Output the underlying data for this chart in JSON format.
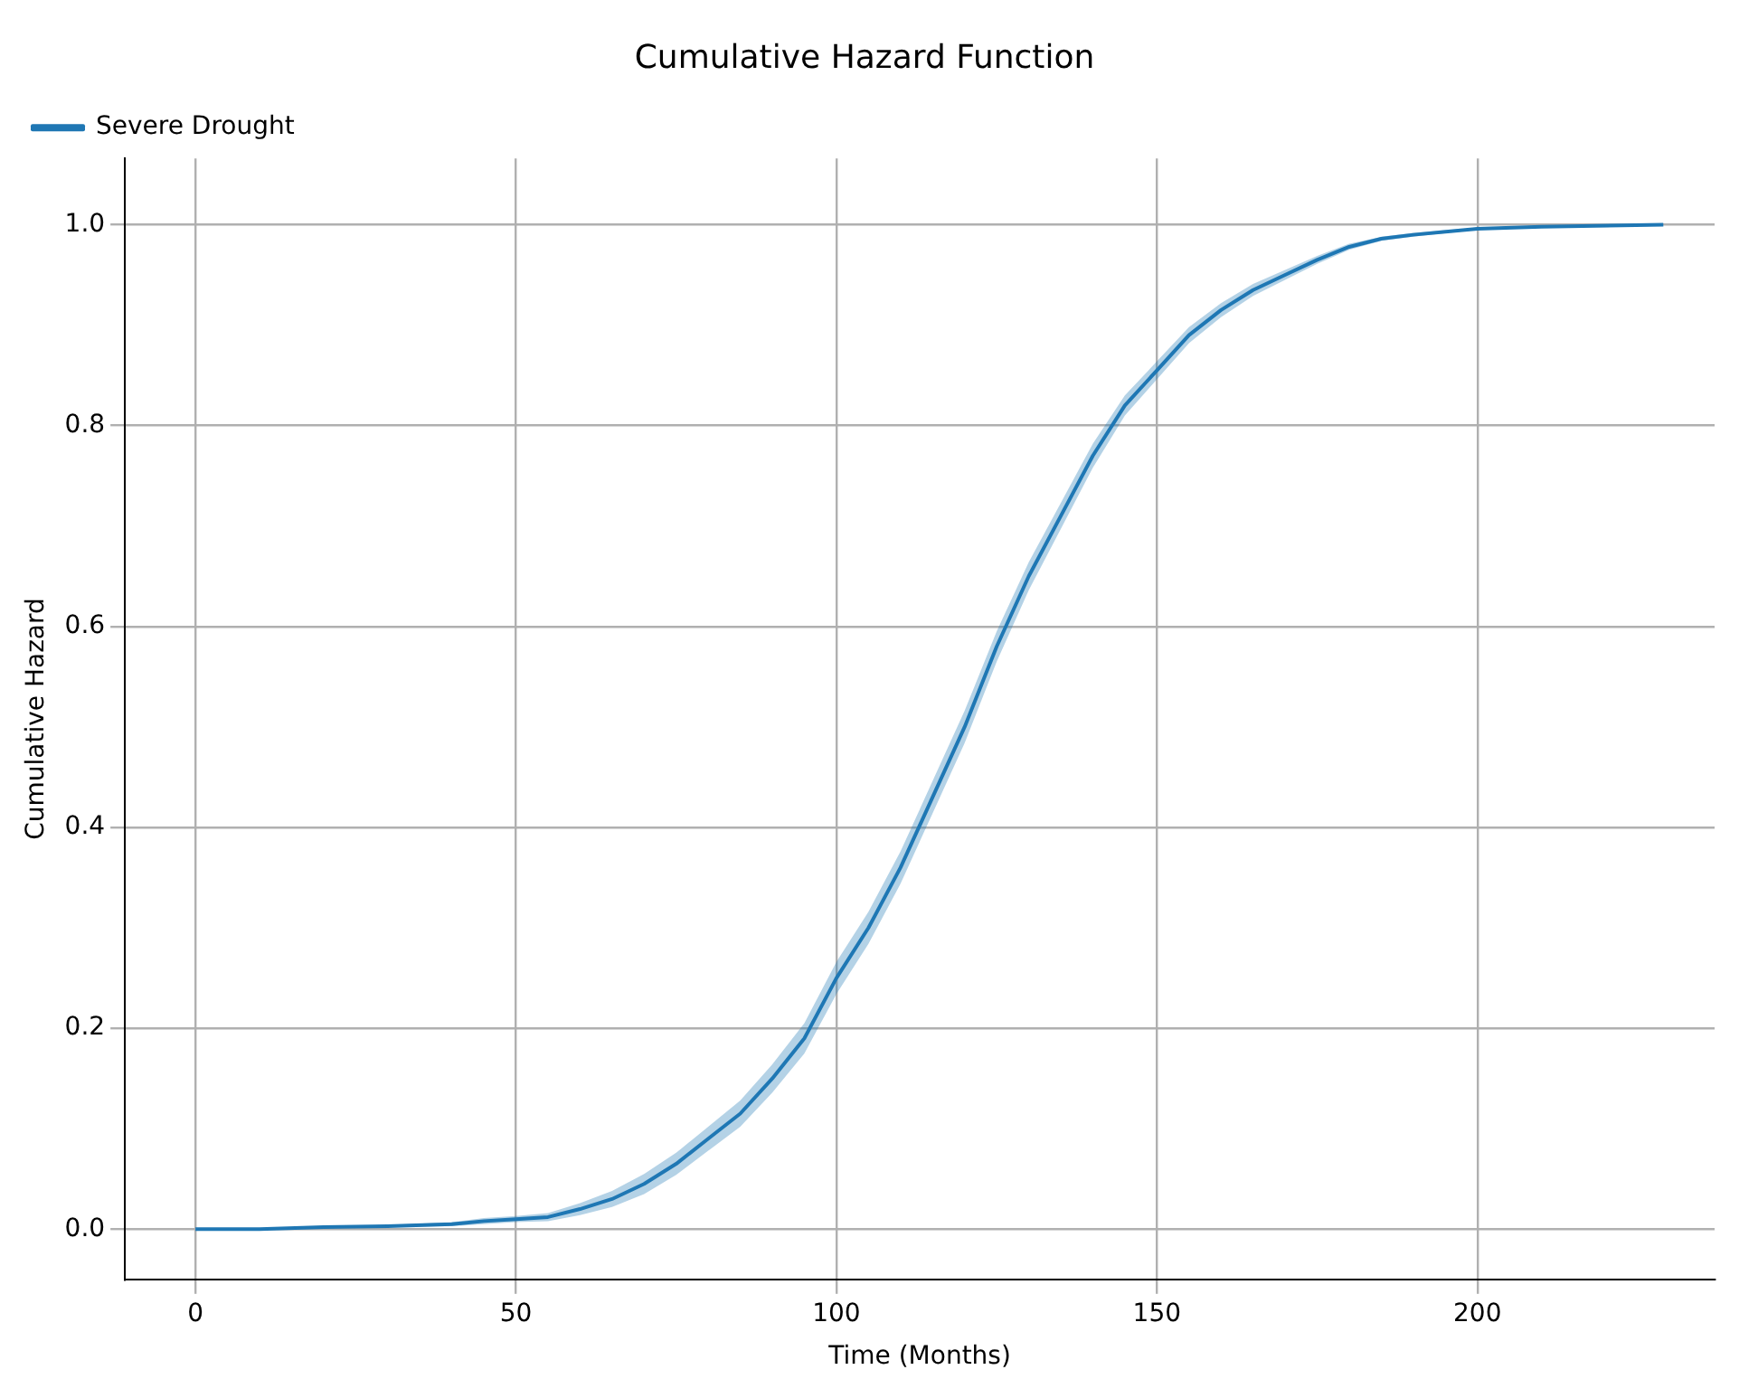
{
  "chart_data": {
    "type": "line",
    "title": "Cumulative Hazard Function",
    "xlabel": "Time (Months)",
    "ylabel": "Cumulative Hazard",
    "xlim": [
      -11,
      237
    ],
    "ylim": [
      -0.05,
      1.066
    ],
    "xticks": [
      0,
      50,
      100,
      150,
      200
    ],
    "yticks": [
      {
        "value": 0,
        "label": "0.0"
      },
      {
        "value": 0.2,
        "label": "0.2"
      },
      {
        "value": 0.4,
        "label": "0.4"
      },
      {
        "value": 0.6,
        "label": "0.6"
      },
      {
        "value": 0.8,
        "label": "0.8"
      },
      {
        "value": 1,
        "label": "1.0"
      }
    ],
    "grid": true,
    "legend": "top left",
    "line_style": "solid",
    "marker": "none",
    "series": [
      {
        "name": "Severe Drought",
        "color": "#1f77b4",
        "x": [
          0,
          10,
          20,
          30,
          40,
          45,
          50,
          55,
          60,
          65,
          70,
          75,
          80,
          85,
          90,
          95,
          100,
          105,
          110,
          115,
          120,
          125,
          130,
          135,
          140,
          145,
          150,
          155,
          160,
          165,
          170,
          175,
          180,
          185,
          190,
          200,
          210,
          229
        ],
        "values": [
          0,
          0,
          0.002,
          0.003,
          0.005,
          0.008,
          0.01,
          0.012,
          0.02,
          0.03,
          0.045,
          0.065,
          0.09,
          0.115,
          0.15,
          0.19,
          0.25,
          0.3,
          0.36,
          0.43,
          0.5,
          0.58,
          0.65,
          0.71,
          0.77,
          0.82,
          0.855,
          0.89,
          0.915,
          0.935,
          0.95,
          0.965,
          0.978,
          0.986,
          0.99,
          0.996,
          0.998,
          1
        ],
        "lower": [
          0,
          0,
          0.001,
          0.002,
          0.003,
          0.005,
          0.007,
          0.008,
          0.014,
          0.022,
          0.035,
          0.054,
          0.078,
          0.102,
          0.136,
          0.175,
          0.234,
          0.284,
          0.344,
          0.414,
          0.484,
          0.565,
          0.636,
          0.697,
          0.758,
          0.81,
          0.846,
          0.882,
          0.908,
          0.929,
          0.945,
          0.961,
          0.975,
          0.984,
          0.988,
          0.995,
          0.997,
          0.999
        ],
        "upper": [
          0,
          0,
          0.003,
          0.004,
          0.007,
          0.011,
          0.013,
          0.016,
          0.026,
          0.038,
          0.055,
          0.076,
          0.102,
          0.128,
          0.164,
          0.205,
          0.266,
          0.316,
          0.376,
          0.446,
          0.516,
          0.595,
          0.664,
          0.723,
          0.782,
          0.83,
          0.864,
          0.898,
          0.922,
          0.941,
          0.955,
          0.969,
          0.981,
          0.988,
          0.992,
          0.997,
          0.999,
          1
        ]
      }
    ]
  }
}
